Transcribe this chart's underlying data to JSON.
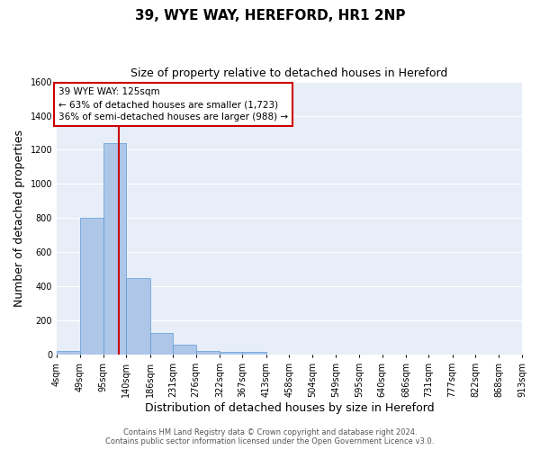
{
  "title1": "39, WYE WAY, HEREFORD, HR1 2NP",
  "title2": "Size of property relative to detached houses in Hereford",
  "xlabel": "Distribution of detached houses by size in Hereford",
  "ylabel": "Number of detached properties",
  "bin_edges": [
    4,
    49,
    95,
    140,
    186,
    231,
    276,
    322,
    367,
    413,
    458,
    504,
    549,
    595,
    640,
    686,
    731,
    777,
    822,
    868,
    913
  ],
  "bar_heights": [
    25,
    800,
    1240,
    450,
    130,
    60,
    25,
    15,
    15,
    0,
    0,
    0,
    0,
    0,
    0,
    0,
    0,
    0,
    0,
    0
  ],
  "bar_color": "#aec6e8",
  "bar_edgecolor": "#5b9bd5",
  "plot_bg_color": "#e8eef8",
  "figure_bg_color": "#ffffff",
  "grid_color": "#ffffff",
  "ylim": [
    0,
    1600
  ],
  "yticks": [
    0,
    200,
    400,
    600,
    800,
    1000,
    1200,
    1400,
    1600
  ],
  "property_size": 125,
  "red_line_color": "#cc0000",
  "annotation_line1": "39 WYE WAY: 125sqm",
  "annotation_line2": "← 63% of detached houses are smaller (1,723)",
  "annotation_line3": "36% of semi-detached houses are larger (988) →",
  "annotation_box_color": "#ffffff",
  "annotation_box_edgecolor": "#cc0000",
  "footer_text": "Contains HM Land Registry data © Crown copyright and database right 2024.\nContains public sector information licensed under the Open Government Licence v3.0.",
  "title1_fontsize": 11,
  "title2_fontsize": 9,
  "tick_fontsize": 7,
  "ylabel_fontsize": 9,
  "xlabel_fontsize": 9,
  "annotation_fontsize": 7.5,
  "footer_fontsize": 6
}
